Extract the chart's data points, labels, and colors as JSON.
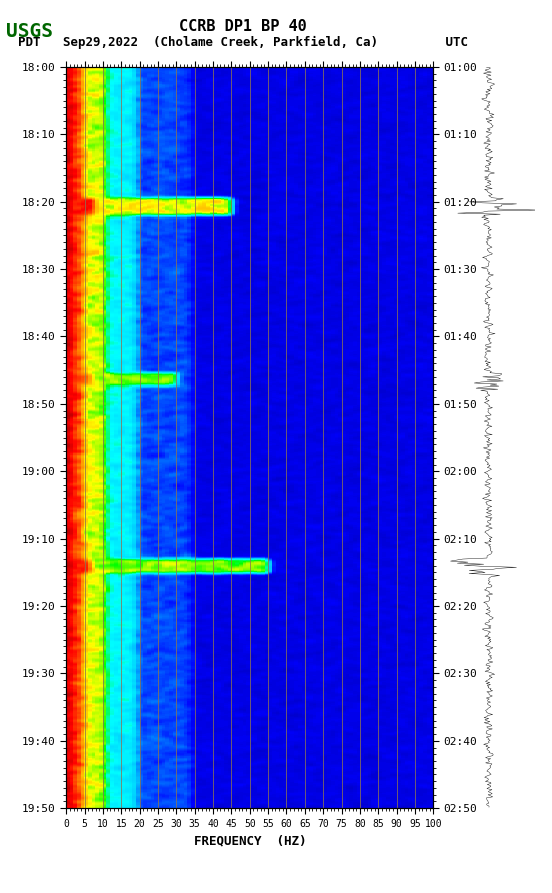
{
  "title_line1": "CCRB DP1 BP 40",
  "title_line2": "PDT   Sep29,2022  (Cholame Creek, Parkfield, Ca)         UTC",
  "xlabel": "FREQUENCY  (HZ)",
  "freq_min": 0,
  "freq_max": 100,
  "freq_ticks": [
    0,
    5,
    10,
    15,
    20,
    25,
    30,
    35,
    40,
    45,
    50,
    55,
    60,
    65,
    70,
    75,
    80,
    85,
    90,
    95,
    100
  ],
  "time_start_pdt": "18:00",
  "time_end_pdt": "19:50",
  "time_start_utc": "01:00",
  "time_end_utc": "02:50",
  "pdt_ticks": [
    "18:00",
    "18:10",
    "18:20",
    "18:30",
    "18:40",
    "18:50",
    "19:00",
    "19:10",
    "19:20",
    "19:30",
    "19:40",
    "19:50"
  ],
  "utc_ticks": [
    "01:00",
    "01:10",
    "01:20",
    "01:30",
    "01:40",
    "01:50",
    "02:00",
    "02:10",
    "02:20",
    "02:30",
    "02:40",
    "02:50"
  ],
  "n_time": 720,
  "n_freq": 100,
  "background_color": "#ffffff",
  "spectrogram_bg": "#00008B",
  "grid_line_color": "#8B7355",
  "grid_freqs": [
    5,
    10,
    15,
    20,
    25,
    30,
    35,
    40,
    45,
    50,
    55,
    60,
    65,
    70,
    75,
    80,
    85,
    90,
    95
  ],
  "font_family": "monospace",
  "title_fontsize": 11,
  "label_fontsize": 9,
  "tick_fontsize": 8
}
